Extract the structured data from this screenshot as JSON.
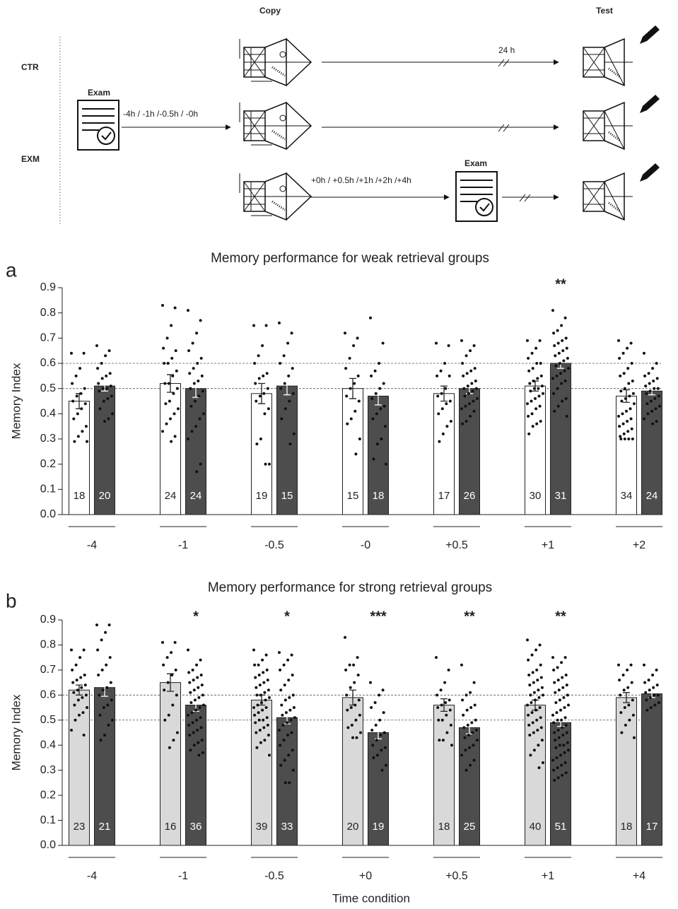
{
  "diagram": {
    "header_copy": "Copy",
    "header_test": "Test",
    "row_ctr": "CTR",
    "row_exm": "EXM",
    "exam_label_1": "Exam",
    "exam_label_2": "Exam",
    "delay_ctr": "24 h",
    "before_times": "-4h / -1h /-0.5h / -0h",
    "after_times": "+0h / +0.5h /+1h /+2h /+4h"
  },
  "chart_data": [
    {
      "type": "bar",
      "panel": "a",
      "title": "Memory performance for weak retrieval groups",
      "ylabel": "Memory Index",
      "categories": [
        "-4",
        "-1",
        "-0.5",
        "-0",
        "+0.5",
        "+1",
        "+2"
      ],
      "ylim": [
        0,
        0.9
      ],
      "yticks": [
        {
          "value": 0,
          "label": "0.0"
        },
        0.1,
        0.2,
        0.3,
        0.4,
        0.5,
        0.6,
        0.7,
        0.8,
        0.9
      ],
      "reference_lines": [
        0.5,
        0.6
      ],
      "series": [
        {
          "color": "#ffffff",
          "values": [
            0.45,
            0.52,
            0.48,
            0.5,
            0.48,
            0.51,
            0.47
          ],
          "errors": [
            0.03,
            0.035,
            0.04,
            0.04,
            0.03,
            0.02,
            0.025
          ],
          "counts": [
            18,
            24,
            19,
            15,
            17,
            30,
            34
          ],
          "stars": [
            null,
            null,
            null,
            null,
            null,
            null,
            null
          ],
          "points": [
            [
              0.64,
              0.64,
              0.58,
              0.55,
              0.52,
              0.5,
              0.48,
              0.47,
              0.45,
              0.44,
              0.42,
              0.4,
              0.38,
              0.35,
              0.33,
              0.31,
              0.29,
              0.29
            ],
            [
              0.83,
              0.82,
              0.75,
              0.7,
              0.66,
              0.65,
              0.62,
              0.6,
              0.6,
              0.57,
              0.55,
              0.52,
              0.52,
              0.5,
              0.48,
              0.45,
              0.44,
              0.42,
              0.4,
              0.38,
              0.36,
              0.33,
              0.31,
              0.29
            ],
            [
              0.75,
              0.75,
              0.67,
              0.63,
              0.6,
              0.56,
              0.55,
              0.54,
              0.52,
              0.5,
              0.48,
              0.47,
              0.45,
              0.42,
              0.4,
              0.3,
              0.28,
              0.2,
              0.2
            ],
            [
              0.72,
              0.7,
              0.67,
              0.62,
              0.58,
              0.55,
              0.52,
              0.5,
              0.47,
              0.45,
              0.41,
              0.38,
              0.36,
              0.3,
              0.24
            ],
            [
              0.68,
              0.67,
              0.6,
              0.57,
              0.55,
              0.55,
              0.5,
              0.48,
              0.47,
              0.45,
              0.44,
              0.42,
              0.4,
              0.37,
              0.35,
              0.32,
              0.29
            ],
            [
              0.69,
              0.69,
              0.66,
              0.64,
              0.62,
              0.6,
              0.6,
              0.58,
              0.57,
              0.55,
              0.54,
              0.53,
              0.52,
              0.51,
              0.5,
              0.5,
              0.49,
              0.48,
              0.47,
              0.46,
              0.45,
              0.44,
              0.43,
              0.42,
              0.4,
              0.39,
              0.37,
              0.36,
              0.35,
              0.32
            ],
            [
              0.69,
              0.68,
              0.66,
              0.64,
              0.62,
              0.6,
              0.58,
              0.56,
              0.55,
              0.53,
              0.52,
              0.5,
              0.49,
              0.48,
              0.47,
              0.46,
              0.45,
              0.44,
              0.42,
              0.41,
              0.4,
              0.39,
              0.38,
              0.37,
              0.36,
              0.35,
              0.34,
              0.33,
              0.32,
              0.31,
              0.3,
              0.3,
              0.3,
              0.3
            ]
          ]
        },
        {
          "color": "#4d4d4d",
          "values": [
            0.51,
            0.5,
            0.51,
            0.47,
            0.5,
            0.6,
            0.49
          ],
          "errors": [
            0.02,
            0.035,
            0.035,
            0.035,
            0.02,
            0.02,
            0.015
          ],
          "counts": [
            20,
            24,
            15,
            18,
            26,
            31,
            24
          ],
          "stars": [
            null,
            null,
            null,
            null,
            null,
            "**",
            null
          ],
          "points": [
            [
              0.67,
              0.65,
              0.63,
              0.6,
              0.58,
              0.56,
              0.55,
              0.54,
              0.52,
              0.51,
              0.5,
              0.5,
              0.49,
              0.47,
              0.46,
              0.45,
              0.42,
              0.4,
              0.38,
              0.37
            ],
            [
              0.81,
              0.77,
              0.72,
              0.68,
              0.65,
              0.62,
              0.6,
              0.58,
              0.56,
              0.55,
              0.53,
              0.52,
              0.5,
              0.49,
              0.47,
              0.45,
              0.43,
              0.4,
              0.38,
              0.35,
              0.33,
              0.3,
              0.2,
              0.17
            ],
            [
              0.76,
              0.72,
              0.68,
              0.63,
              0.6,
              0.58,
              0.55,
              0.52,
              0.5,
              0.48,
              0.45,
              0.42,
              0.38,
              0.32,
              0.28
            ],
            [
              0.78,
              0.68,
              0.6,
              0.57,
              0.55,
              0.52,
              0.5,
              0.48,
              0.46,
              0.43,
              0.42,
              0.4,
              0.38,
              0.35,
              0.3,
              0.28,
              0.22,
              0.2
            ],
            [
              0.69,
              0.67,
              0.65,
              0.63,
              0.6,
              0.58,
              0.57,
              0.56,
              0.55,
              0.53,
              0.52,
              0.51,
              0.5,
              0.5,
              0.49,
              0.48,
              0.47,
              0.46,
              0.45,
              0.44,
              0.43,
              0.42,
              0.41,
              0.39,
              0.37,
              0.36
            ],
            [
              0.81,
              0.78,
              0.75,
              0.73,
              0.72,
              0.7,
              0.69,
              0.68,
              0.67,
              0.66,
              0.65,
              0.64,
              0.63,
              0.62,
              0.61,
              0.6,
              0.59,
              0.58,
              0.57,
              0.56,
              0.55,
              0.54,
              0.53,
              0.52,
              0.5,
              0.48,
              0.46,
              0.45,
              0.43,
              0.41,
              0.39
            ],
            [
              0.64,
              0.6,
              0.58,
              0.56,
              0.55,
              0.54,
              0.53,
              0.52,
              0.51,
              0.5,
              0.5,
              0.49,
              0.48,
              0.47,
              0.46,
              0.45,
              0.44,
              0.43,
              0.42,
              0.41,
              0.4,
              0.38,
              0.37,
              0.36
            ]
          ]
        }
      ]
    },
    {
      "type": "bar",
      "panel": "b",
      "title": "Memory performance for strong retrieval groups",
      "ylabel": "Memory Index",
      "xlabel": "Time condition",
      "categories": [
        "-4",
        "-1",
        "-0.5",
        "+0",
        "+0.5",
        "+1",
        "+4"
      ],
      "ylim": [
        0,
        0.9
      ],
      "yticks": [
        {
          "value": 0,
          "label": "0.0"
        },
        0.1,
        0.2,
        0.3,
        0.4,
        0.5,
        0.6,
        0.7,
        0.8,
        0.9
      ],
      "reference_lines": [
        0.5,
        0.6
      ],
      "series": [
        {
          "color": "#d9d9d9",
          "values": [
            0.62,
            0.65,
            0.58,
            0.59,
            0.56,
            0.56,
            0.59
          ],
          "errors": [
            0.02,
            0.035,
            0.02,
            0.03,
            0.025,
            0.02,
            0.02
          ],
          "counts": [
            23,
            16,
            39,
            20,
            18,
            40,
            18
          ],
          "stars": [
            null,
            null,
            null,
            null,
            null,
            null,
            null
          ],
          "points": [
            [
              0.78,
              0.78,
              0.75,
              0.72,
              0.7,
              0.68,
              0.67,
              0.66,
              0.65,
              0.64,
              0.63,
              0.62,
              0.61,
              0.6,
              0.59,
              0.58,
              0.56,
              0.55,
              0.53,
              0.52,
              0.5,
              0.46,
              0.44
            ],
            [
              0.81,
              0.81,
              0.77,
              0.75,
              0.72,
              0.7,
              0.68,
              0.65,
              0.62,
              0.6,
              0.56,
              0.52,
              0.5,
              0.45,
              0.42,
              0.39
            ],
            [
              0.78,
              0.76,
              0.74,
              0.72,
              0.72,
              0.7,
              0.69,
              0.68,
              0.67,
              0.66,
              0.65,
              0.64,
              0.63,
              0.62,
              0.61,
              0.6,
              0.6,
              0.59,
              0.58,
              0.57,
              0.56,
              0.55,
              0.55,
              0.54,
              0.53,
              0.52,
              0.51,
              0.5,
              0.5,
              0.49,
              0.48,
              0.47,
              0.46,
              0.45,
              0.44,
              0.42,
              0.41,
              0.39,
              0.36
            ],
            [
              0.83,
              0.75,
              0.72,
              0.72,
              0.7,
              0.68,
              0.65,
              0.63,
              0.6,
              0.58,
              0.56,
              0.55,
              0.54,
              0.52,
              0.5,
              0.48,
              0.47,
              0.45,
              0.43,
              0.43
            ],
            [
              0.75,
              0.7,
              0.65,
              0.62,
              0.6,
              0.58,
              0.57,
              0.56,
              0.55,
              0.54,
              0.52,
              0.5,
              0.5,
              0.48,
              0.45,
              0.42,
              0.42,
              0.4
            ],
            [
              0.82,
              0.8,
              0.78,
              0.76,
              0.74,
              0.72,
              0.7,
              0.69,
              0.68,
              0.67,
              0.66,
              0.65,
              0.64,
              0.63,
              0.62,
              0.61,
              0.6,
              0.6,
              0.59,
              0.58,
              0.57,
              0.56,
              0.55,
              0.54,
              0.53,
              0.52,
              0.51,
              0.5,
              0.49,
              0.48,
              0.47,
              0.46,
              0.45,
              0.44,
              0.42,
              0.4,
              0.38,
              0.36,
              0.33,
              0.31
            ],
            [
              0.72,
              0.72,
              0.7,
              0.68,
              0.66,
              0.65,
              0.63,
              0.62,
              0.6,
              0.58,
              0.56,
              0.55,
              0.53,
              0.52,
              0.5,
              0.48,
              0.45,
              0.43
            ]
          ]
        },
        {
          "color": "#4d4d4d",
          "values": [
            0.63,
            0.56,
            0.51,
            0.45,
            0.47,
            0.49,
            0.605
          ],
          "errors": [
            0.035,
            0.025,
            0.025,
            0.025,
            0.025,
            0.015,
            0.015
          ],
          "counts": [
            21,
            36,
            33,
            19,
            25,
            51,
            17
          ],
          "stars": [
            null,
            "*",
            "*",
            "***",
            "**",
            "**",
            null
          ],
          "points": [
            [
              0.88,
              0.88,
              0.85,
              0.82,
              0.78,
              0.75,
              0.72,
              0.7,
              0.68,
              0.65,
              0.63,
              0.62,
              0.6,
              0.58,
              0.56,
              0.55,
              0.52,
              0.5,
              0.48,
              0.44,
              0.42
            ],
            [
              0.78,
              0.74,
              0.72,
              0.7,
              0.69,
              0.68,
              0.67,
              0.66,
              0.65,
              0.64,
              0.63,
              0.62,
              0.61,
              0.6,
              0.59,
              0.58,
              0.57,
              0.56,
              0.55,
              0.54,
              0.53,
              0.52,
              0.51,
              0.5,
              0.49,
              0.48,
              0.47,
              0.46,
              0.45,
              0.44,
              0.42,
              0.41,
              0.4,
              0.38,
              0.37,
              0.36
            ],
            [
              0.77,
              0.76,
              0.74,
              0.72,
              0.7,
              0.68,
              0.66,
              0.64,
              0.62,
              0.6,
              0.59,
              0.58,
              0.56,
              0.55,
              0.54,
              0.53,
              0.52,
              0.51,
              0.5,
              0.49,
              0.48,
              0.46,
              0.45,
              0.44,
              0.42,
              0.4,
              0.38,
              0.36,
              0.34,
              0.32,
              0.3,
              0.25,
              0.25
            ],
            [
              0.65,
              0.62,
              0.6,
              0.57,
              0.55,
              0.53,
              0.5,
              0.48,
              0.46,
              0.45,
              0.44,
              0.42,
              0.4,
              0.39,
              0.38,
              0.36,
              0.35,
              0.32,
              0.3
            ],
            [
              0.72,
              0.65,
              0.61,
              0.6,
              0.58,
              0.56,
              0.55,
              0.54,
              0.52,
              0.5,
              0.49,
              0.48,
              0.47,
              0.46,
              0.45,
              0.44,
              0.43,
              0.42,
              0.4,
              0.39,
              0.38,
              0.36,
              0.34,
              0.32,
              0.3
            ],
            [
              0.75,
              0.75,
              0.73,
              0.71,
              0.7,
              0.68,
              0.67,
              0.66,
              0.65,
              0.64,
              0.63,
              0.62,
              0.61,
              0.6,
              0.59,
              0.58,
              0.57,
              0.56,
              0.55,
              0.54,
              0.53,
              0.52,
              0.51,
              0.5,
              0.5,
              0.49,
              0.48,
              0.47,
              0.46,
              0.45,
              0.45,
              0.44,
              0.43,
              0.42,
              0.41,
              0.4,
              0.4,
              0.39,
              0.38,
              0.37,
              0.36,
              0.35,
              0.34,
              0.33,
              0.32,
              0.31,
              0.3,
              0.29,
              0.28,
              0.27,
              0.26
            ],
            [
              0.72,
              0.7,
              0.68,
              0.66,
              0.65,
              0.64,
              0.63,
              0.62,
              0.61,
              0.6,
              0.6,
              0.59,
              0.58,
              0.57,
              0.56,
              0.55,
              0.54
            ]
          ]
        }
      ]
    }
  ]
}
